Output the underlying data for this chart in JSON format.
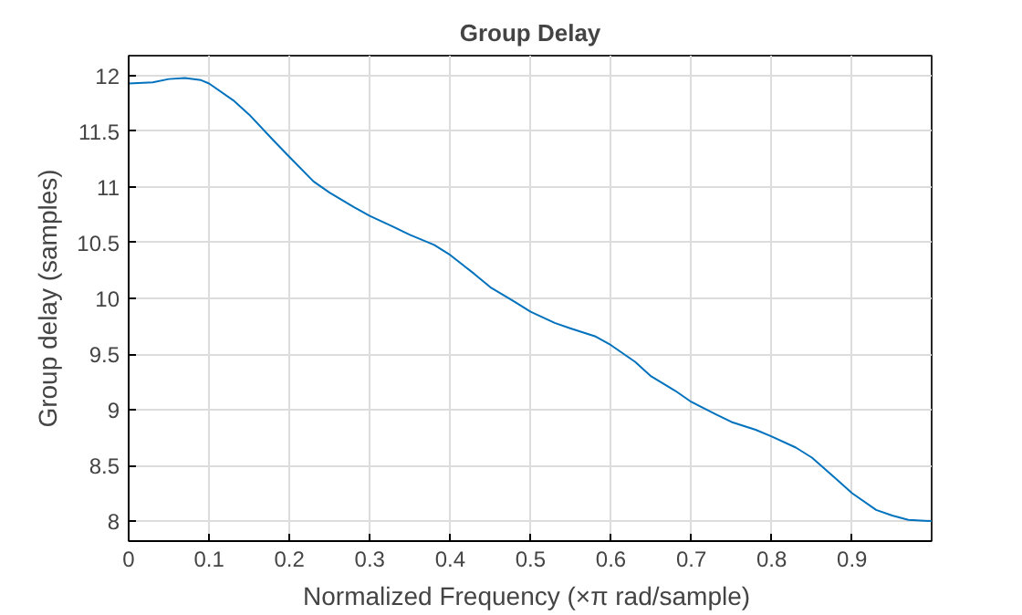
{
  "chart_data": {
    "type": "line",
    "title": "Group Delay",
    "xlabel": "Normalized Frequency  (×π rad/sample)",
    "ylabel": "Group delay (samples)",
    "x": [
      0,
      0.03,
      0.05,
      0.07,
      0.09,
      0.1,
      0.13,
      0.15,
      0.18,
      0.2,
      0.23,
      0.25,
      0.28,
      0.3,
      0.33,
      0.35,
      0.38,
      0.4,
      0.43,
      0.45,
      0.48,
      0.5,
      0.53,
      0.55,
      0.58,
      0.6,
      0.63,
      0.65,
      0.68,
      0.7,
      0.73,
      0.75,
      0.78,
      0.8,
      0.83,
      0.85,
      0.88,
      0.9,
      0.93,
      0.95,
      0.97,
      0.999
    ],
    "series": [
      {
        "color": "#0072bd",
        "values": [
          11.93,
          11.94,
          11.97,
          11.98,
          11.96,
          11.93,
          11.78,
          11.65,
          11.42,
          11.27,
          11.05,
          10.95,
          10.82,
          10.74,
          10.64,
          10.57,
          10.48,
          10.39,
          10.22,
          10.1,
          9.97,
          9.88,
          9.78,
          9.73,
          9.66,
          9.58,
          9.43,
          9.3,
          9.17,
          9.07,
          8.96,
          8.89,
          8.82,
          8.76,
          8.66,
          8.57,
          8.38,
          8.25,
          8.1,
          8.05,
          8.01,
          8.0
        ]
      }
    ],
    "xlim": [
      0,
      0.999
    ],
    "ylim": [
      7.82,
      12.18
    ],
    "xticks": [
      0,
      0.1,
      0.2,
      0.3,
      0.4,
      0.5,
      0.6,
      0.7,
      0.8,
      0.9
    ],
    "yticks": [
      8,
      8.5,
      9,
      9.5,
      10,
      10.5,
      11,
      11.5,
      12
    ],
    "grid": true,
    "line_style": "solid"
  }
}
